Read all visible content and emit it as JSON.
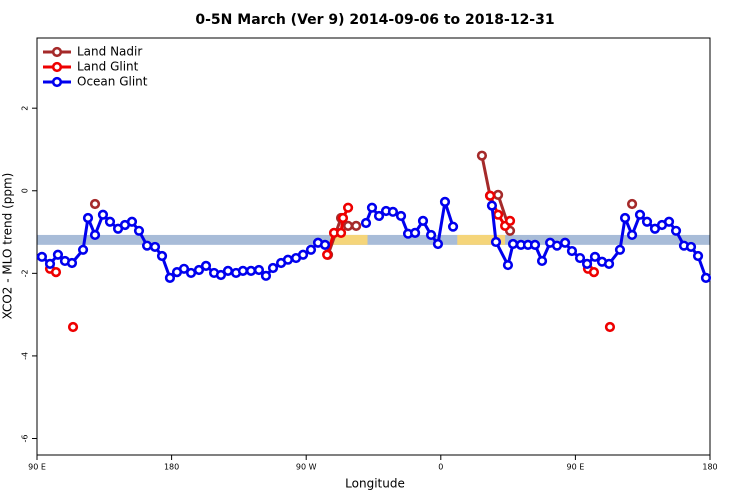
{
  "chart_data": {
    "type": "line",
    "title": "0-5N March (Ver 9)   2014-09-06 to 2018-12-31",
    "x_label": "Longitude",
    "y_label": "XCO2 - MLO trend (ppm)",
    "xlim": [
      90,
      540
    ],
    "ylim": [
      -6.4,
      3.7
    ],
    "xticks": [
      {
        "value": 90,
        "label": "90 E"
      },
      180,
      {
        "value": 270,
        "label": "90 W"
      },
      {
        "value": 360,
        "label": "0"
      },
      {
        "value": 450,
        "label": "90 E"
      },
      {
        "value": 540,
        "label": "180"
      }
    ],
    "yticks": [
      -6,
      -4,
      -2,
      0,
      2
    ],
    "legend": "top-left",
    "band": {
      "range": [
        -1.31,
        -1.07
      ],
      "color": "#a8bcd8"
    },
    "highlight": {
      "color": "#f5d57a",
      "ranges": [
        [
          286,
          311
        ],
        [
          371,
          403
        ]
      ]
    },
    "series": [
      {
        "name": "Land Nadir",
        "color": "#a52a2a",
        "x": [
          128.8,
          null,
          284.6,
          293.3,
          298,
          303.4,
          null,
          387.5,
          392.9,
          398.3,
          406.3,
          null,
          487.9
        ],
        "values": [
          -0.32,
          null,
          -1.55,
          -0.66,
          -0.85,
          -0.85,
          null,
          0.85,
          -0.12,
          -0.1,
          -0.97,
          null,
          -0.32
        ]
      },
      {
        "name": "Land Glint",
        "color": "#ee0000",
        "x": [
          98.7,
          102.7,
          null,
          114.1,
          null,
          284,
          288.6,
          293.3,
          294.6,
          298,
          null,
          393,
          398.3,
          403,
          406.3,
          null,
          458.4,
          462.4,
          null,
          473.1
        ],
        "values": [
          -1.89,
          -1.97,
          null,
          -3.3,
          null,
          -1.55,
          -1.02,
          -1.02,
          -0.66,
          -0.41,
          null,
          -0.12,
          -0.58,
          -0.85,
          -0.73,
          null,
          -1.89,
          -1.97,
          null,
          -3.3
        ]
      },
      {
        "name": "Ocean Glint",
        "color": "#0000ee",
        "x": [
          93.3,
          98.7,
          104,
          108.7,
          113.4,
          120.8,
          124.1,
          128.8,
          134.1,
          138.8,
          144.2,
          148.8,
          153.5,
          158.2,
          163.6,
          168.9,
          173.6,
          178.9,
          183.6,
          188.3,
          193,
          198.3,
          203,
          208.4,
          213,
          217.7,
          223.1,
          227.7,
          233.1,
          238.4,
          243.1,
          247.8,
          253.2,
          257.8,
          263.2,
          267.9,
          273.2,
          277.9,
          282.6,
          null,
          310,
          314,
          318.7,
          323.4,
          328,
          333.4,
          338.1,
          342.8,
          348.1,
          353.5,
          358.1,
          362.8,
          368.2,
          null,
          394.2,
          396.9,
          404.9,
          408.3,
          413.6,
          418.3,
          423,
          427.7,
          433.1,
          437.7,
          443.1,
          447.7,
          453.1,
          457.8,
          463.1,
          467.8,
          472.5,
          479.8,
          483.2,
          487.9,
          493.2,
          497.9,
          503.2,
          507.9,
          512.6,
          517.3,
          522.6,
          527.3,
          532,
          537.3
        ],
        "values": [
          -1.6,
          -1.77,
          -1.55,
          -1.7,
          -1.75,
          -1.43,
          -0.66,
          -1.07,
          -0.58,
          -0.75,
          -0.92,
          -0.83,
          -0.75,
          -0.97,
          -1.33,
          -1.36,
          -1.58,
          -2.11,
          -1.97,
          -1.89,
          -1.99,
          -1.92,
          -1.82,
          -1.99,
          -2.04,
          -1.94,
          -1.99,
          -1.94,
          -1.94,
          -1.92,
          -2.06,
          -1.87,
          -1.75,
          -1.67,
          -1.63,
          -1.55,
          -1.43,
          -1.26,
          -1.31,
          null,
          -0.78,
          -0.41,
          -0.61,
          -0.49,
          -0.51,
          -0.61,
          -1.04,
          -1.02,
          -0.73,
          -1.07,
          -1.29,
          -0.27,
          -0.87,
          null,
          -0.36,
          -1.24,
          -1.8,
          -1.29,
          -1.31,
          -1.31,
          -1.31,
          -1.7,
          -1.26,
          -1.33,
          -1.26,
          -1.46,
          -1.63,
          -1.77,
          -1.6,
          -1.72,
          -1.77,
          -1.43,
          -0.66,
          -1.07,
          -0.58,
          -0.75,
          -0.92,
          -0.83,
          -0.75,
          -0.97,
          -1.33,
          -1.36,
          -1.58,
          -2.11
        ]
      }
    ]
  }
}
